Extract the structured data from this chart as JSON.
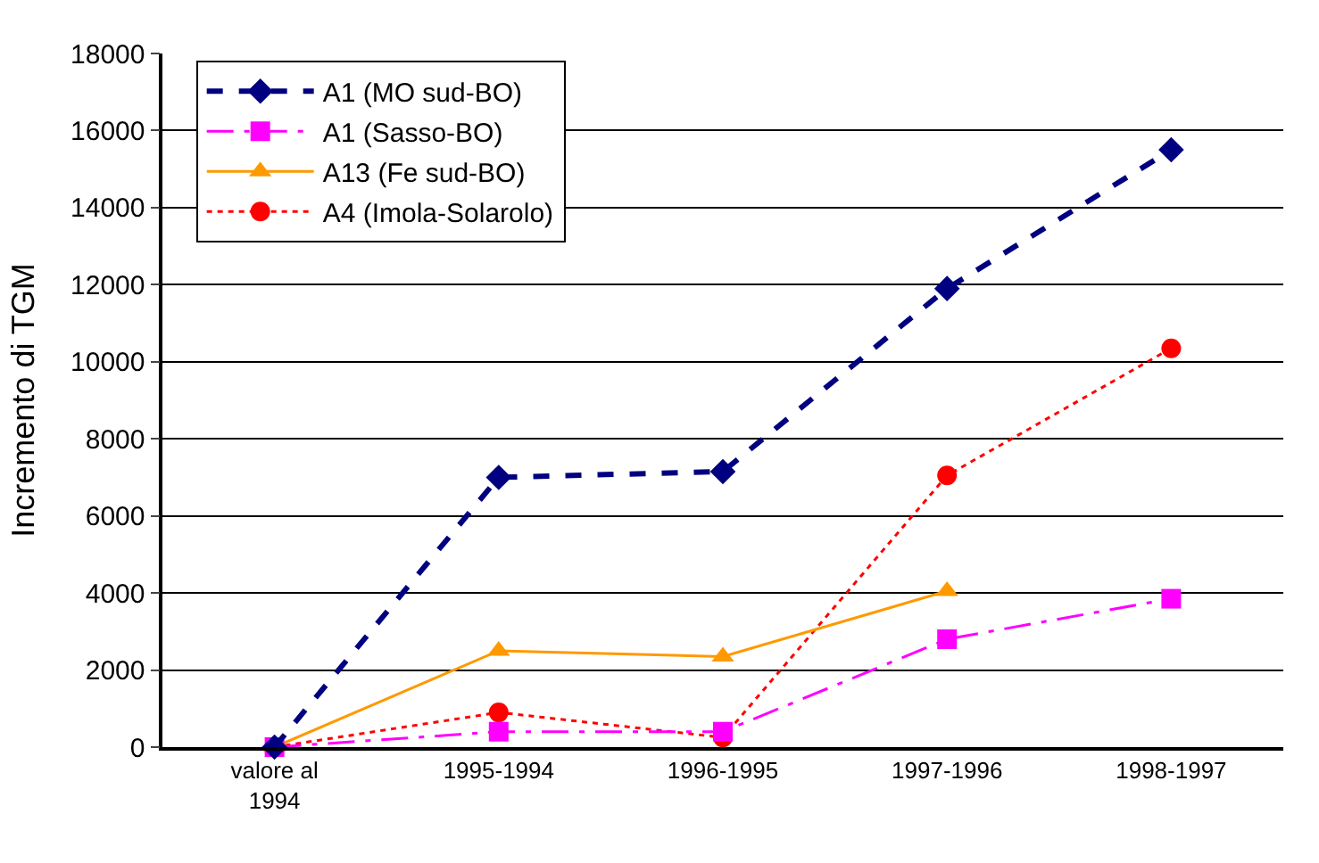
{
  "chart_data": {
    "type": "line",
    "ylabel": "Incremento di TGM",
    "categories": [
      "valore al\n1994",
      "1995-1994",
      "1996-1995",
      "1997-1996",
      "1998-1997"
    ],
    "ylim": [
      0,
      18000
    ],
    "yticks": [
      0,
      2000,
      4000,
      6000,
      8000,
      10000,
      12000,
      14000,
      16000,
      18000
    ],
    "grid": "y",
    "legend": "top left",
    "series": [
      {
        "name": "A1 (MO sud-BO)",
        "color": "#000080",
        "marker": "diamond",
        "line_style": "dashed",
        "values": [
          0,
          7000,
          7150,
          11900,
          15500
        ]
      },
      {
        "name": "A1 (Sasso-BO)",
        "color": "#ff00ff",
        "marker": "square",
        "line_style": "dashdot",
        "values": [
          0,
          400,
          400,
          2800,
          3850
        ]
      },
      {
        "name": "A13 (Fe sud-BO)",
        "color": "#ff9900",
        "marker": "triangle",
        "line_style": "solid",
        "values": [
          0,
          2500,
          2350,
          4050,
          null
        ]
      },
      {
        "name": "A4 (Imola-Solarolo)",
        "color": "#ff0000",
        "marker": "circle",
        "line_style": "dotted",
        "values": [
          0,
          900,
          250,
          7050,
          10350
        ]
      }
    ]
  }
}
